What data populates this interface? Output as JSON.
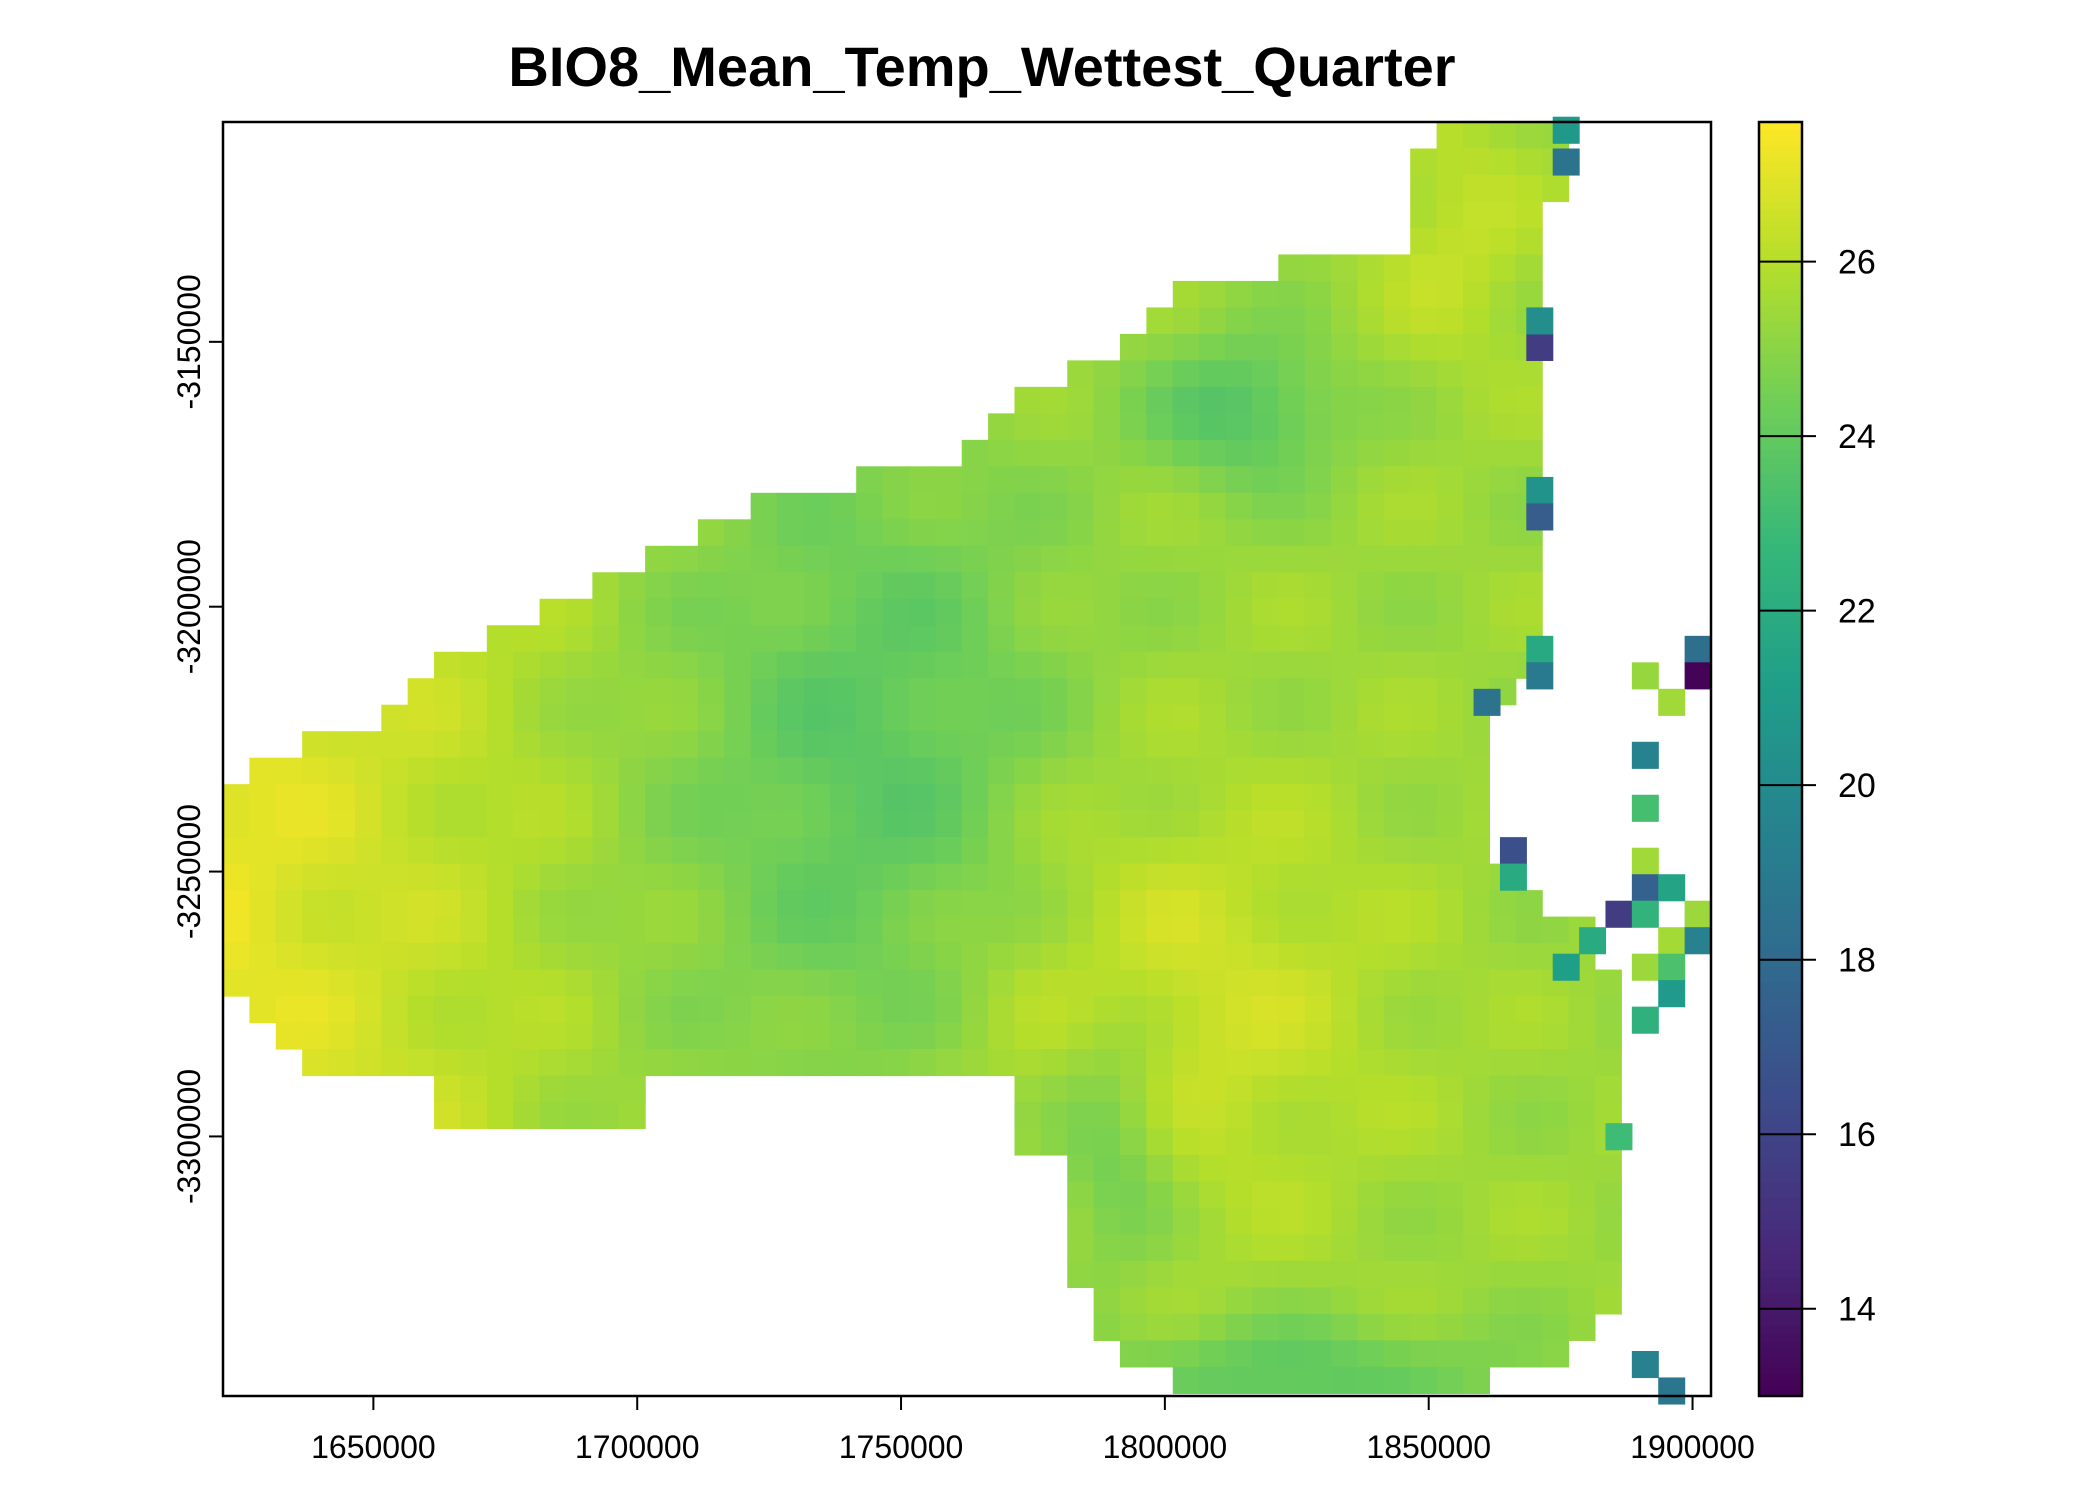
{
  "chart_data": {
    "type": "heatmap",
    "title": "BIO8_Mean_Temp_Wettest_Quarter",
    "xlabel": "",
    "ylabel": "",
    "xlim": [
      1621500,
      1903500
    ],
    "ylim": [
      -3349000,
      -3108500
    ],
    "x_ticks": [
      1650000,
      1700000,
      1750000,
      1800000,
      1850000,
      1900000
    ],
    "x_tick_labels": [
      "1650000",
      "1700000",
      "1750000",
      "1800000",
      "1850000",
      "1900000"
    ],
    "y_ticks": [
      -3150000,
      -3200000,
      -3250000,
      -3300000
    ],
    "y_tick_labels": [
      "-3150000",
      "-3200000",
      "-3250000",
      "-3300000"
    ],
    "cell_size": 5000,
    "colorbar": {
      "min": 13,
      "max": 27.6,
      "ticks": [
        14,
        16,
        18,
        20,
        22,
        24,
        26
      ],
      "tick_labels": [
        "14",
        "16",
        "18",
        "20",
        "22",
        "24",
        "26"
      ],
      "colormap": "viridis"
    },
    "colormap_colors": [
      "#440154",
      "#482878",
      "#3e4989",
      "#31688e",
      "#26828e",
      "#1f9e89",
      "#35b779",
      "#6ece58",
      "#b5de2b",
      "#fde725"
    ],
    "grid": false,
    "legend": "right"
  }
}
